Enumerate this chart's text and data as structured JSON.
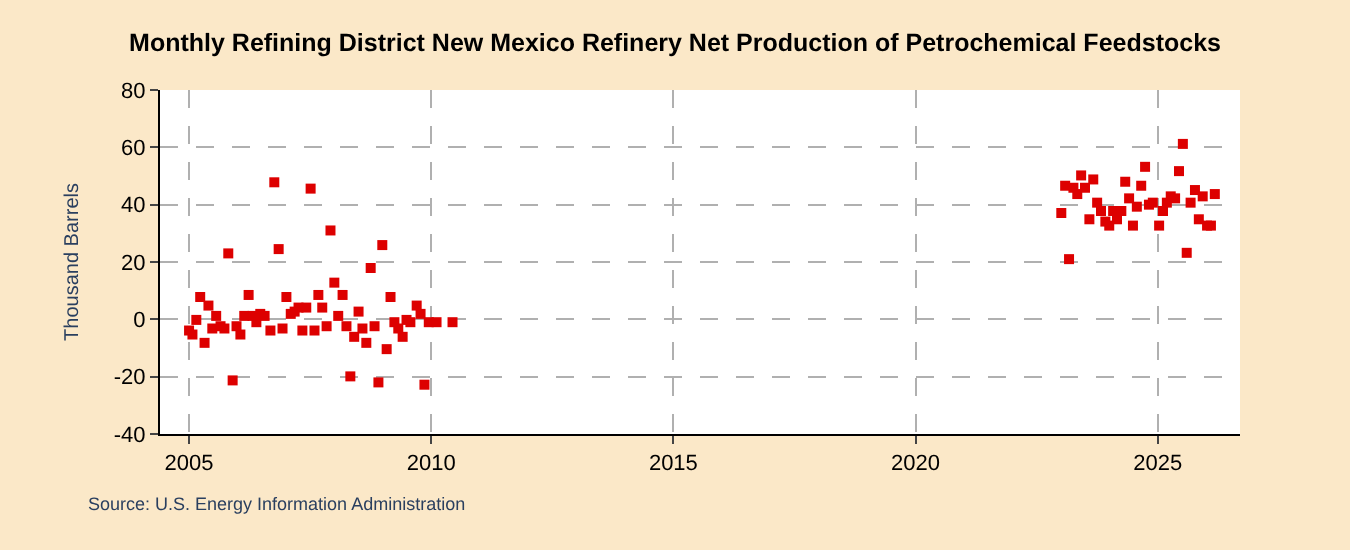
{
  "chart_data": {
    "type": "scatter",
    "title": "Monthly Refining District New Mexico Refinery Net Production of Petrochemical Feedstocks",
    "ylabel": "Thousand Barrels",
    "annotations": [
      "Source: U.S. Energy Information Administration"
    ],
    "x": [
      2005.0,
      2005.07,
      2005.15,
      2005.23,
      2005.32,
      2005.4,
      2005.48,
      2005.56,
      2005.65,
      2005.73,
      2005.81,
      2005.9,
      2005.98,
      2006.06,
      2006.14,
      2006.23,
      2006.31,
      2006.39,
      2006.47,
      2006.56,
      2006.68,
      2006.76,
      2006.85,
      2006.93,
      2007.01,
      2007.1,
      2007.18,
      2007.26,
      2007.34,
      2007.42,
      2007.51,
      2007.59,
      2007.67,
      2007.75,
      2007.84,
      2007.92,
      2008.0,
      2008.08,
      2008.17,
      2008.25,
      2008.33,
      2008.41,
      2008.5,
      2008.58,
      2008.66,
      2008.75,
      2008.83,
      2008.91,
      2008.99,
      2009.08,
      2009.16,
      2009.24,
      2009.32,
      2009.41,
      2009.49,
      2009.57,
      2009.7,
      2009.78,
      2009.86,
      2009.95,
      2010.11,
      2010.44,
      2023.01,
      2023.09,
      2023.17,
      2023.26,
      2023.34,
      2023.42,
      2023.5,
      2023.59,
      2023.67,
      2023.75,
      2023.83,
      2023.92,
      2024.0,
      2024.08,
      2024.16,
      2024.25,
      2024.33,
      2024.41,
      2024.49,
      2024.57,
      2024.66,
      2024.74,
      2024.82,
      2024.9,
      2025.03,
      2025.11,
      2025.19,
      2025.27,
      2025.36,
      2025.44,
      2025.52,
      2025.6,
      2025.68,
      2025.77,
      2025.85,
      2025.93,
      2026.02,
      2026.1,
      2026.18
    ],
    "series": [
      {
        "color": "#dd0000",
        "values": [
          -3.9,
          -5.3,
          -0.2,
          7.8,
          -8.2,
          4.8,
          -3.2,
          1.2,
          -2.4,
          -3.2,
          23,
          -21.3,
          -2.4,
          -5.3,
          1.2,
          8.5,
          1.2,
          -1,
          1.9,
          1.2,
          -3.9,
          47.8,
          24.5,
          -3.2,
          7.8,
          1.9,
          2.7,
          4.1,
          -3.9,
          4.1,
          45.6,
          -3.9,
          8.5,
          4.1,
          -2.4,
          31,
          12.8,
          1.2,
          8.5,
          -2.4,
          -19.9,
          -6.1,
          2.7,
          -3.2,
          -8.2,
          17.9,
          -2.4,
          -22,
          25.9,
          -10.4,
          7.8,
          -1,
          -3.2,
          -6.1,
          -0.2,
          -1,
          4.8,
          1.9,
          -22.8,
          -1,
          -1,
          -1,
          37.1,
          46.6,
          21,
          45.9,
          43.7,
          50.2,
          45.9,
          34.9,
          48.8,
          40.7,
          37.8,
          34.1,
          32.7,
          37.8,
          34.9,
          37.8,
          48,
          42.2,
          32.7,
          39.3,
          46.6,
          53.2,
          40,
          40.7,
          32.7,
          37.8,
          40.7,
          42.9,
          42.2,
          51.7,
          61.2,
          23.2,
          40.7,
          45.1,
          34.9,
          42.9,
          32.7,
          32.7,
          43.7
        ]
      }
    ],
    "marker": "square",
    "grid": true,
    "xlim": [
      2004.4,
      2026.7
    ],
    "xticks": [
      2005,
      2010,
      2015,
      2020,
      2025
    ],
    "ylim": [
      -40,
      80
    ],
    "yticks": [
      -40,
      -20,
      0,
      20,
      40,
      60,
      80
    ]
  }
}
